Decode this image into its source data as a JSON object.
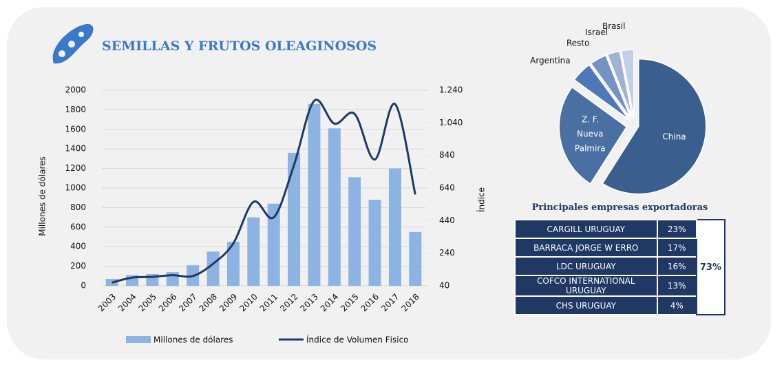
{
  "header": {
    "title": "SEMILLAS Y FRUTOS OLEAGINOSOS"
  },
  "chart_data": [
    {
      "type": "bar-line",
      "categories": [
        "2003",
        "2004",
        "2005",
        "2006",
        "2007",
        "2008",
        "2009",
        "2010",
        "2011",
        "2012",
        "2013",
        "2014",
        "2015",
        "2016",
        "2017",
        "2018"
      ],
      "series": [
        {
          "name": "Millones de dólares",
          "type": "bar",
          "color": "#8db3e2",
          "values": [
            70,
            110,
            120,
            140,
            210,
            350,
            450,
            700,
            840,
            1360,
            1860,
            1610,
            1110,
            880,
            1200,
            550
          ]
        },
        {
          "name": "Índice de Volumen Físico",
          "type": "line",
          "axis": "y2",
          "color": "#1f3864",
          "values": [
            60,
            90,
            95,
            105,
            100,
            175,
            300,
            555,
            460,
            780,
            1175,
            1035,
            1095,
            815,
            1155,
            600
          ]
        }
      ],
      "ylabel": "Millones de dólares",
      "y2label": "Índice",
      "ylim": [
        0,
        2000
      ],
      "yticks": [
        0,
        200,
        400,
        600,
        800,
        1000,
        1200,
        1400,
        1600,
        1800,
        2000
      ],
      "y2lim": [
        40,
        1240
      ],
      "y2ticks": [
        40,
        240,
        440,
        640,
        840,
        {
          "value": 1040,
          "label": "1.040"
        },
        {
          "value": 1240,
          "label": "1.240"
        }
      ],
      "legend": "bottom"
    },
    {
      "type": "pie",
      "categories": [
        "China",
        "Z. F. Nueva Palmira",
        "Argentina",
        "Resto",
        "Israel",
        "Brasil"
      ],
      "values": [
        59,
        26,
        5,
        4,
        3,
        3
      ],
      "colors": [
        "#3a5f8f",
        "#4a70a3",
        "#4f78b8",
        "#7592c4",
        "#9fb2d6",
        "#c3cfe4"
      ],
      "inside_labels": [
        true,
        true,
        false,
        false,
        false,
        false
      ]
    }
  ],
  "table": {
    "title": "Principales empresas exportadoras",
    "rows": [
      [
        "CARGILL URUGUAY",
        "23%"
      ],
      [
        "BARRACA JORGE W ERRO",
        "17%"
      ],
      [
        "LDC URUGUAY",
        "16%"
      ],
      [
        "COFCO INTERNATIONAL URUGUAY",
        "13%"
      ],
      [
        "CHS URUGUAY",
        "4%"
      ]
    ],
    "total": "73%"
  }
}
